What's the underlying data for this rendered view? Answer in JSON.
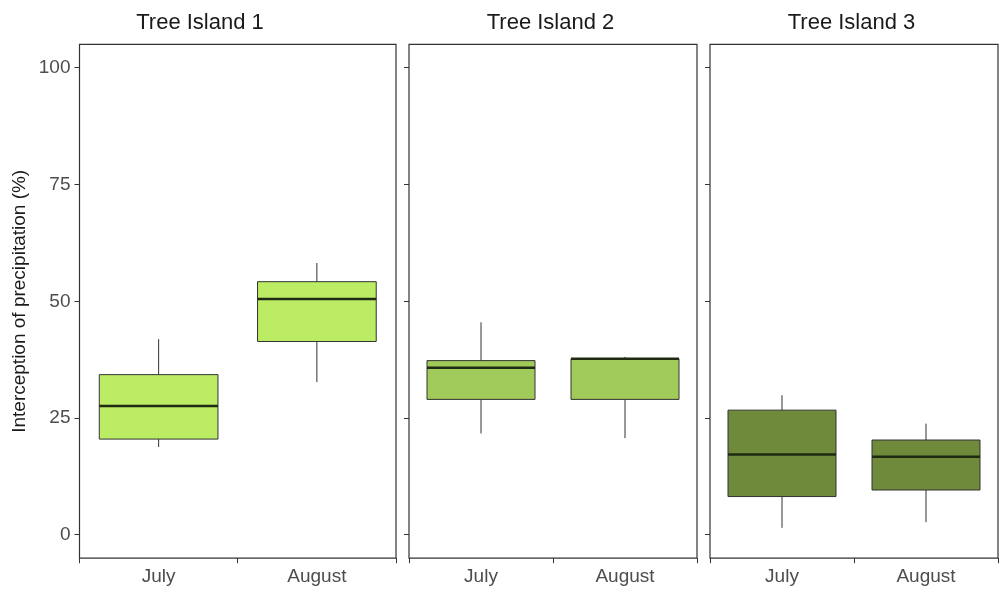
{
  "chart_data": [
    {
      "type": "box",
      "title": "Tree Island 1",
      "ylabel": "Interception of precipitation (%)",
      "categories": [
        "July",
        "August"
      ],
      "color": "#bcec64",
      "ylim": [
        -5,
        105
      ],
      "yticks": [
        0,
        25,
        50,
        75,
        100
      ],
      "boxes": [
        {
          "low": 18.8,
          "q1": 20.5,
          "median": 27.6,
          "q3": 34.3,
          "high": 41.9
        },
        {
          "low": 32.7,
          "q1": 41.4,
          "median": 50.5,
          "q3": 54.2,
          "high": 58.2
        }
      ]
    },
    {
      "type": "box",
      "title": "Tree Island 2",
      "categories": [
        "July",
        "August"
      ],
      "color": "#a0cb5a",
      "ylim": [
        -5,
        105
      ],
      "yticks": [
        0,
        25,
        50,
        75,
        100
      ],
      "tick_labels": "x",
      "boxes": [
        {
          "low": 21.7,
          "q1": 29.0,
          "median": 35.8,
          "q3": 37.3,
          "high": 45.5
        },
        {
          "low": 20.7,
          "q1": 29.0,
          "median": 37.7,
          "q3": 37.7,
          "high": 38.1
        }
      ]
    },
    {
      "type": "box",
      "title": "Tree Island 3",
      "categories": [
        "July",
        "August"
      ],
      "color": "#6f8a3a",
      "ylim": [
        -5,
        105
      ],
      "yticks": [
        0,
        25,
        50,
        75,
        100
      ],
      "tick_labels": "x",
      "boxes": [
        {
          "low": 1.5,
          "q1": 8.2,
          "median": 17.2,
          "q3": 26.7,
          "high": 29.9
        },
        {
          "low": 2.7,
          "q1": 9.6,
          "median": 16.7,
          "q3": 20.3,
          "high": 23.8
        }
      ]
    }
  ]
}
